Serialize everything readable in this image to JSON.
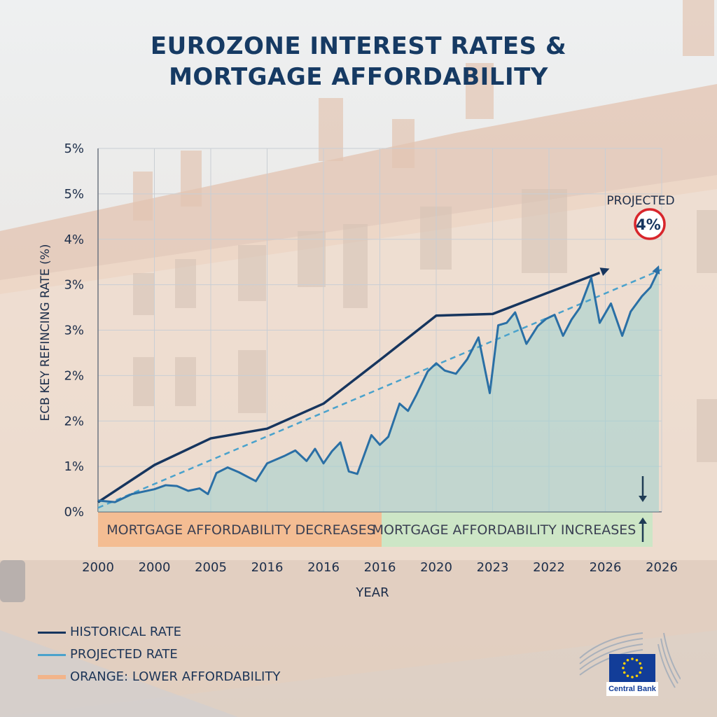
{
  "title_line1": "EUROZONE INTEREST RATES &",
  "title_line2": "MORTGAGE AFFORDABILITY",
  "chart_data": {
    "type": "line",
    "title": "EUROZONE INTEREST RATES & MORTGAGE AFFORDABILITY",
    "xlabel": "YEAR",
    "ylabel": "ECB KEY REFINCING RATE (%)",
    "x_tick_labels": [
      "2000",
      "2000",
      "2005",
      "2016",
      "2016",
      "2016",
      "2020",
      "2023",
      "2022",
      "2026",
      "2026"
    ],
    "y_tick_labels": [
      "0%",
      "1%",
      "2%",
      "2%",
      "3%",
      "3%",
      "4%",
      "5%",
      "5%"
    ],
    "ylim": [
      0,
      4.5
    ],
    "xlim": [
      0,
      10
    ],
    "grid": true,
    "series": [
      {
        "name": "HISTORICAL RATE",
        "color": "#16355e",
        "points": [
          [
            0,
            0.12
          ],
          [
            1,
            0.58
          ],
          [
            2,
            0.91
          ],
          [
            3,
            1.03
          ],
          [
            4,
            1.34
          ],
          [
            5,
            1.88
          ],
          [
            6,
            2.43
          ],
          [
            7,
            2.45
          ],
          [
            8.9,
            2.96
          ]
        ]
      },
      {
        "name": "PROJECTED RATE",
        "color": "#2a6fa5",
        "points": [
          [
            0,
            0.14
          ],
          [
            0.3,
            0.12
          ],
          [
            0.6,
            0.22
          ],
          [
            1,
            0.28
          ],
          [
            1.2,
            0.33
          ],
          [
            1.4,
            0.32
          ],
          [
            1.6,
            0.26
          ],
          [
            1.8,
            0.29
          ],
          [
            1.95,
            0.22
          ],
          [
            2.1,
            0.48
          ],
          [
            2.3,
            0.55
          ],
          [
            2.5,
            0.49
          ],
          [
            2.8,
            0.38
          ],
          [
            3.0,
            0.6
          ],
          [
            3.3,
            0.69
          ],
          [
            3.5,
            0.76
          ],
          [
            3.7,
            0.63
          ],
          [
            3.85,
            0.78
          ],
          [
            4.0,
            0.6
          ],
          [
            4.15,
            0.75
          ],
          [
            4.3,
            0.86
          ],
          [
            4.45,
            0.5
          ],
          [
            4.6,
            0.47
          ],
          [
            4.85,
            0.95
          ],
          [
            5.0,
            0.83
          ],
          [
            5.15,
            0.93
          ],
          [
            5.35,
            1.34
          ],
          [
            5.5,
            1.25
          ],
          [
            5.65,
            1.45
          ],
          [
            5.85,
            1.74
          ],
          [
            6.0,
            1.84
          ],
          [
            6.15,
            1.75
          ],
          [
            6.35,
            1.71
          ],
          [
            6.55,
            1.89
          ],
          [
            6.75,
            2.16
          ],
          [
            6.95,
            1.47
          ],
          [
            7.1,
            2.31
          ],
          [
            7.25,
            2.34
          ],
          [
            7.4,
            2.47
          ],
          [
            7.6,
            2.08
          ],
          [
            7.8,
            2.3
          ],
          [
            7.95,
            2.39
          ],
          [
            8.1,
            2.44
          ],
          [
            8.25,
            2.18
          ],
          [
            8.4,
            2.38
          ],
          [
            8.55,
            2.53
          ],
          [
            8.75,
            2.9
          ],
          [
            8.9,
            2.34
          ],
          [
            9.1,
            2.58
          ],
          [
            9.3,
            2.18
          ],
          [
            9.45,
            2.48
          ],
          [
            9.65,
            2.67
          ],
          [
            9.8,
            2.78
          ],
          [
            9.95,
            3.0
          ]
        ]
      }
    ],
    "trend_line": {
      "from": [
        0,
        0.05
      ],
      "to": [
        10,
        3.0
      ],
      "style": "dashed"
    },
    "annotation_label": "PROJECTED",
    "annotation_value": "4%",
    "band_left": "MORTGAGE AFFORDABILITY DECREASES",
    "band_right": "MORTGAGE AFFORDABILITY INCREASES",
    "legend": [
      {
        "label": "HISTORICAL RATE",
        "color": "#16355e"
      },
      {
        "label": "PROJECTED RATE",
        "color": "#4aa2cc"
      },
      {
        "label": "ORANGE: LOWER AFFORDABILITY",
        "color": "#f2b48a"
      }
    ],
    "legend_position": "bottom-left"
  },
  "colors": {
    "historical": "#16355e",
    "projected": "#2a6fa5",
    "trend": "#4aa2cc",
    "area": "#9fd1cf",
    "band_orange": "#f4b98c",
    "band_green": "#c9e7c4",
    "annotation_ring": "#d8262c",
    "grid": "#c9ced4"
  },
  "logo_caption": "Central Bank"
}
